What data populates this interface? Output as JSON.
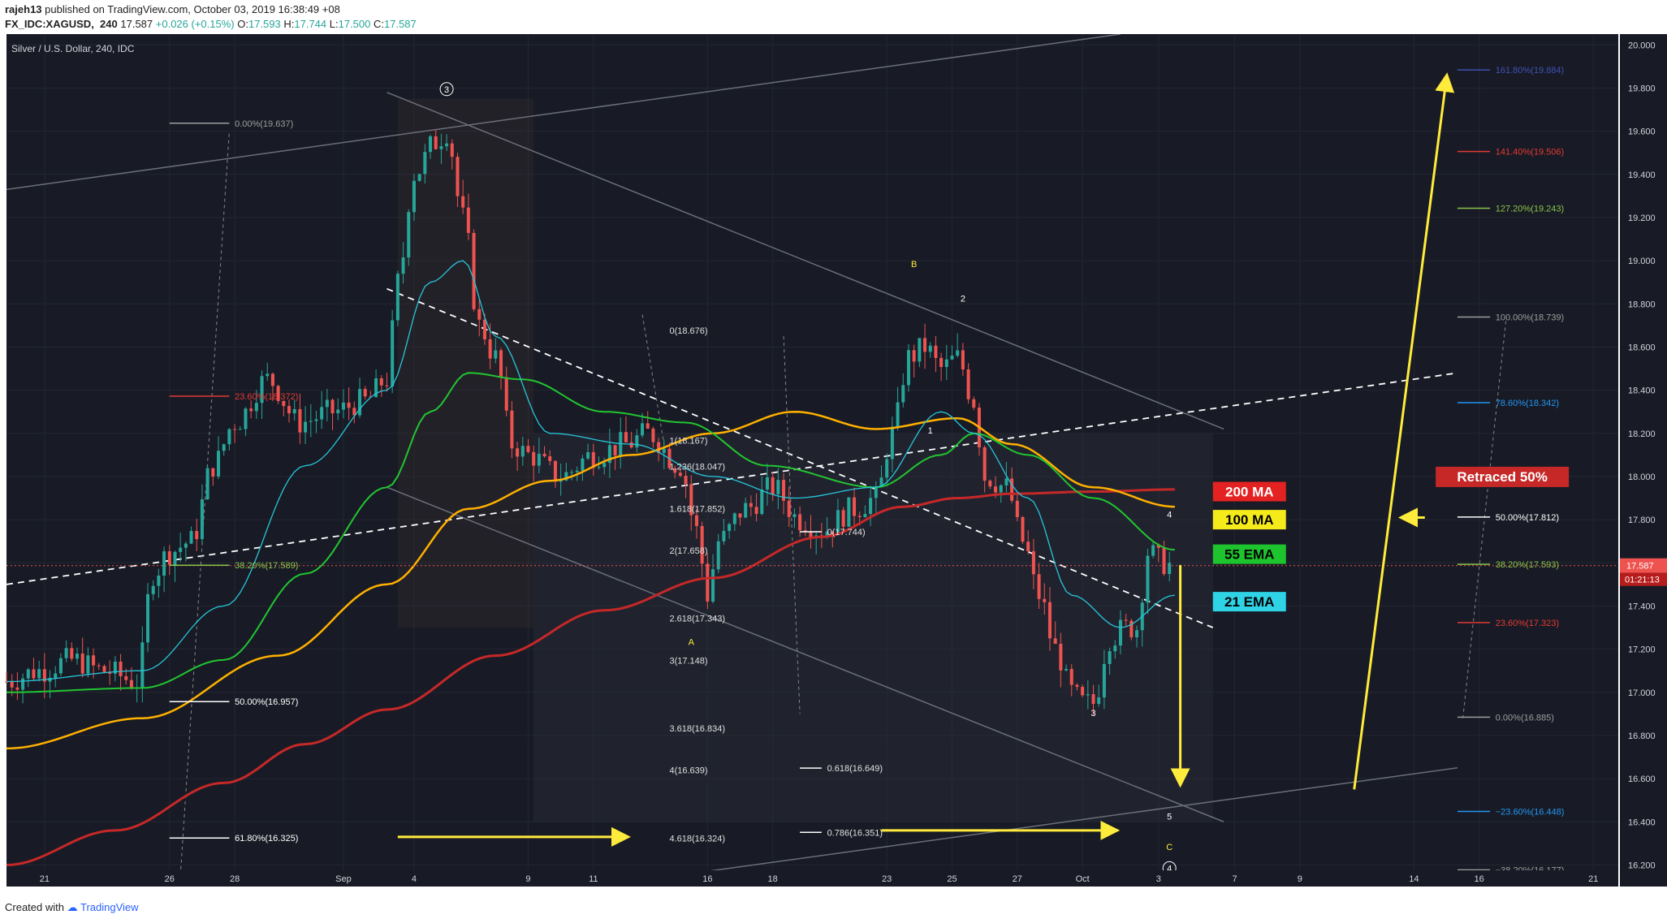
{
  "header": {
    "publisher": "rajeh13",
    "published_text": "published on TradingView.com, October 03, 2019 16:38:49 +08",
    "symbol": "FX_IDC:XAGUSD",
    "interval": "240",
    "last": "17.587",
    "change": "+0.026 (+0.15%)",
    "o_label": "O:",
    "o_value": "17.593",
    "h_label": "H:",
    "h_value": "17.744",
    "l_label": "L:",
    "l_value": "17.500",
    "c_label": "C:",
    "c_value": "17.587"
  },
  "footer": {
    "created_with": "Created with",
    "brand": "TradingView"
  },
  "colors": {
    "background": "#181b25",
    "grid": "#232733",
    "up": "#26a69a",
    "down": "#ef5350",
    "ma200": "#c62828",
    "ma100": "#ffb000",
    "ema55": "#22c531",
    "ema21": "#26c6da",
    "yellow": "#ffeb3b"
  },
  "chart_data": {
    "type": "candlestick",
    "title": "Silver / U.S. Dollar, 240, IDC",
    "xlabel": "",
    "ylabel": "",
    "ylim": [
      16.1,
      20.05
    ],
    "y_ticks": [
      "16.200",
      "16.400",
      "16.600",
      "16.800",
      "17.000",
      "17.200",
      "17.400",
      "17.600",
      "17.800",
      "18.000",
      "18.200",
      "18.400",
      "18.600",
      "18.800",
      "19.000",
      "19.200",
      "19.400",
      "19.600",
      "19.800",
      "20.000"
    ],
    "x_ticks": [
      {
        "label": "21",
        "index": 7
      },
      {
        "label": "26",
        "index": 30
      },
      {
        "label": "28",
        "index": 42
      },
      {
        "label": "Sep",
        "index": 62
      },
      {
        "label": "4",
        "index": 75
      },
      {
        "label": "9",
        "index": 96
      },
      {
        "label": "11",
        "index": 108
      },
      {
        "label": "16",
        "index": 129
      },
      {
        "label": "18",
        "index": 141
      },
      {
        "label": "23",
        "index": 162
      },
      {
        "label": "25",
        "index": 174
      },
      {
        "label": "27",
        "index": 186
      },
      {
        "label": "Oct",
        "index": 198
      },
      {
        "label": "3",
        "index": 212
      },
      {
        "label": "7",
        "index": 226
      },
      {
        "label": "9",
        "index": 238
      },
      {
        "label": "14",
        "index": 259
      },
      {
        "label": "16",
        "index": 271
      },
      {
        "label": "21",
        "index": 292
      }
    ],
    "price_labels": {
      "last": "17.587",
      "countdown": "01:21:13"
    },
    "candle_anchors": [
      [
        0,
        17.05
      ],
      [
        6,
        17.1
      ],
      [
        12,
        17.15
      ],
      [
        18,
        17.1
      ],
      [
        24,
        17.05
      ],
      [
        27,
        17.55
      ],
      [
        30,
        17.65
      ],
      [
        34,
        17.7
      ],
      [
        38,
        18.05
      ],
      [
        42,
        18.25
      ],
      [
        48,
        18.45
      ],
      [
        54,
        18.25
      ],
      [
        60,
        18.3
      ],
      [
        66,
        18.35
      ],
      [
        70,
        18.45
      ],
      [
        72,
        18.9
      ],
      [
        75,
        19.4
      ],
      [
        79,
        19.55
      ],
      [
        81,
        19.6
      ],
      [
        84,
        19.2
      ],
      [
        87,
        18.7
      ],
      [
        90,
        18.55
      ],
      [
        93,
        18.15
      ],
      [
        96,
        18.1
      ],
      [
        102,
        18.0
      ],
      [
        108,
        18.1
      ],
      [
        114,
        18.15
      ],
      [
        118,
        18.2
      ],
      [
        124,
        18.05
      ],
      [
        127,
        17.75
      ],
      [
        129,
        17.45
      ],
      [
        131,
        17.7
      ],
      [
        136,
        17.85
      ],
      [
        141,
        17.95
      ],
      [
        146,
        17.8
      ],
      [
        150,
        17.75
      ],
      [
        156,
        17.85
      ],
      [
        160,
        17.9
      ],
      [
        163,
        18.2
      ],
      [
        166,
        18.55
      ],
      [
        169,
        18.6
      ],
      [
        172,
        18.5
      ],
      [
        175,
        18.55
      ],
      [
        178,
        18.35
      ],
      [
        180,
        18.0
      ],
      [
        184,
        17.95
      ],
      [
        187,
        17.7
      ],
      [
        190,
        17.45
      ],
      [
        193,
        17.2
      ],
      [
        196,
        17.0
      ],
      [
        198,
        16.95
      ],
      [
        200,
        16.95
      ],
      [
        203,
        17.25
      ],
      [
        206,
        17.3
      ],
      [
        208,
        17.3
      ],
      [
        210,
        17.65
      ],
      [
        213,
        17.6
      ],
      [
        214,
        17.59
      ]
    ],
    "ma200_anchors": [
      [
        0,
        16.2
      ],
      [
        20,
        16.36
      ],
      [
        40,
        16.58
      ],
      [
        55,
        16.76
      ],
      [
        70,
        16.92
      ],
      [
        90,
        17.17
      ],
      [
        110,
        17.38
      ],
      [
        130,
        17.53
      ],
      [
        150,
        17.72
      ],
      [
        165,
        17.86
      ],
      [
        175,
        17.9
      ],
      [
        185,
        17.92
      ],
      [
        200,
        17.93
      ],
      [
        215,
        17.94
      ]
    ],
    "ma100_anchors": [
      [
        0,
        16.74
      ],
      [
        25,
        16.88
      ],
      [
        50,
        17.17
      ],
      [
        70,
        17.5
      ],
      [
        85,
        17.85
      ],
      [
        100,
        17.98
      ],
      [
        115,
        18.1
      ],
      [
        130,
        18.2
      ],
      [
        145,
        18.3
      ],
      [
        160,
        18.22
      ],
      [
        175,
        18.27
      ],
      [
        185,
        18.15
      ],
      [
        200,
        17.95
      ],
      [
        215,
        17.86
      ]
    ],
    "ema55_anchors": [
      [
        0,
        17.0
      ],
      [
        25,
        17.02
      ],
      [
        40,
        17.15
      ],
      [
        55,
        17.55
      ],
      [
        70,
        17.95
      ],
      [
        78,
        18.3
      ],
      [
        85,
        18.48
      ],
      [
        95,
        18.45
      ],
      [
        110,
        18.3
      ],
      [
        125,
        18.25
      ],
      [
        140,
        18.05
      ],
      [
        160,
        17.95
      ],
      [
        172,
        18.1
      ],
      [
        178,
        18.2
      ],
      [
        188,
        18.1
      ],
      [
        200,
        17.9
      ],
      [
        215,
        17.66
      ]
    ],
    "ema21_anchors": [
      [
        0,
        17.05
      ],
      [
        25,
        17.1
      ],
      [
        40,
        17.4
      ],
      [
        55,
        18.05
      ],
      [
        70,
        18.4
      ],
      [
        78,
        18.9
      ],
      [
        84,
        19.0
      ],
      [
        90,
        18.65
      ],
      [
        100,
        18.2
      ],
      [
        115,
        18.15
      ],
      [
        130,
        18.0
      ],
      [
        145,
        17.9
      ],
      [
        160,
        17.95
      ],
      [
        172,
        18.3
      ],
      [
        178,
        18.2
      ],
      [
        188,
        17.9
      ],
      [
        196,
        17.45
      ],
      [
        205,
        17.3
      ],
      [
        215,
        17.45
      ]
    ],
    "series": [
      {
        "name": "200 MA",
        "color": "#c62828"
      },
      {
        "name": "100 MA",
        "color": "#ffeb3b"
      },
      {
        "name": "55 EMA",
        "color": "#22c531"
      },
      {
        "name": "21 EMA",
        "color": "#26c6da"
      }
    ],
    "legend_boxes": [
      {
        "text": "200 MA",
        "bg": "#e52222",
        "fg": "#ffffff",
        "y": 17.93
      },
      {
        "text": "100 MA",
        "bg": "#f5ea1a",
        "fg": "#000000",
        "y": 17.8
      },
      {
        "text": "55 EMA",
        "bg": "#1ec42e",
        "fg": "#000000",
        "y": 17.64
      },
      {
        "text": "21 EMA",
        "bg": "#2ed3e6",
        "fg": "#000000",
        "y": 17.42
      }
    ],
    "fib_retracement_left": [
      {
        "label": "0.00%(19.637)",
        "value": 19.637,
        "color": "#9e9e9e"
      },
      {
        "label": "23.60%(18.372)",
        "value": 18.372,
        "color": "#e53935"
      },
      {
        "label": "38.20%(17.589)",
        "value": 17.589,
        "color": "#8bc34a"
      },
      {
        "label": "50.00%(16.957)",
        "value": 16.957,
        "color": "#ffffff"
      },
      {
        "label": "61.80%(16.325)",
        "value": 16.325,
        "color": "#ffffff"
      }
    ],
    "fib_extension_mid": [
      {
        "label": "0(18.676)",
        "value": 18.676
      },
      {
        "label": "1(18.167)",
        "value": 18.167
      },
      {
        "label": "1.236(18.047)",
        "value": 18.047
      },
      {
        "label": "1.618(17.852)",
        "value": 17.852
      },
      {
        "label": "2(17.658)",
        "value": 17.658
      },
      {
        "label": "2.618(17.343)",
        "value": 17.343
      },
      {
        "label": "3(17.148)",
        "value": 17.148
      },
      {
        "label": "3.618(16.834)",
        "value": 16.834
      },
      {
        "label": "4(16.639)",
        "value": 16.639
      },
      {
        "label": "4.618(16.324)",
        "value": 16.324
      }
    ],
    "fib_small": [
      {
        "label": "0(17.744)",
        "value": 17.744
      },
      {
        "label": "0.618(16.649)",
        "value": 16.649
      },
      {
        "label": "0.786(16.351)",
        "value": 16.351
      }
    ],
    "fib_right": [
      {
        "label": "161.80%(19.884)",
        "value": 19.884,
        "color": "#3f51b5"
      },
      {
        "label": "141.40%(19.506)",
        "value": 19.506,
        "color": "#e53935"
      },
      {
        "label": "127.20%(19.243)",
        "value": 19.243,
        "color": "#8bc34a"
      },
      {
        "label": "100.00%(18.739)",
        "value": 18.739,
        "color": "#9e9e9e"
      },
      {
        "label": "78.60%(18.342)",
        "value": 18.342,
        "color": "#2196f3"
      },
      {
        "label": "50.00%(17.812)",
        "value": 17.812,
        "color": "#ffffff"
      },
      {
        "label": "38.20%(17.593)",
        "value": 17.593,
        "color": "#8bc34a"
      },
      {
        "label": "23.60%(17.323)",
        "value": 17.323,
        "color": "#e53935"
      },
      {
        "label": "0.00%(16.885)",
        "value": 16.885,
        "color": "#9e9e9e"
      },
      {
        "label": "−23.60%(16.448)",
        "value": 16.448,
        "color": "#2196f3"
      },
      {
        "label": "−38.20%(16.177)",
        "value": 16.177,
        "color": "#9e9e9e"
      }
    ],
    "retraced_box": {
      "text": "Retraced 50%"
    },
    "wave_labels": [
      {
        "text": "3",
        "x": 81,
        "y": 19.78,
        "circled": true,
        "color": "#ffffff"
      },
      {
        "text": "B",
        "x": 167,
        "y": 18.97,
        "circled": false,
        "color": "#ffeb3b"
      },
      {
        "text": "2",
        "x": 176,
        "y": 18.81,
        "circled": false,
        "color": "#ffffff"
      },
      {
        "text": "1",
        "x": 170,
        "y": 18.2,
        "circled": false,
        "color": "#ffffff"
      },
      {
        "text": "A",
        "x": 126,
        "y": 17.22,
        "circled": false,
        "color": "#ffeb3b"
      },
      {
        "text": "4",
        "x": 214,
        "y": 17.81,
        "circled": false,
        "color": "#ffffff"
      },
      {
        "text": "3",
        "x": 200,
        "y": 16.89,
        "circled": false,
        "color": "#ffffff"
      },
      {
        "text": "5",
        "x": 214,
        "y": 16.41,
        "circled": false,
        "color": "#ffffff"
      },
      {
        "text": "C",
        "x": 214,
        "y": 16.27,
        "circled": false,
        "color": "#ffeb3b"
      },
      {
        "text": "4",
        "x": 214,
        "y": 16.17,
        "circled": true,
        "color": "#ffffff"
      }
    ]
  }
}
